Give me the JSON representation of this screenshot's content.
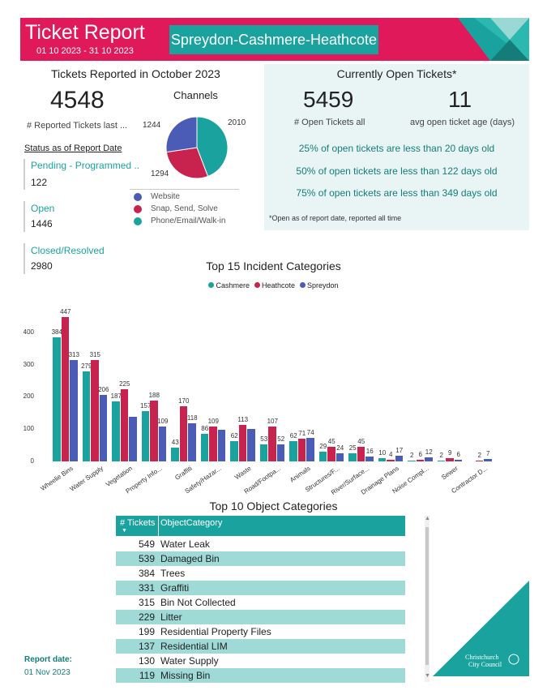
{
  "header": {
    "title": "Ticket Report",
    "date_range": "01 10 2023 - 31 10 2023",
    "region": "Spreydon-Cashmere-Heathcote"
  },
  "reported": {
    "heading": "Tickets Reported in October 2023",
    "count": "4548",
    "count_label": "# Reported Tickets last ...",
    "status_heading": "Status as of Report Date",
    "statuses": [
      {
        "label": "Pending - Programmed ..",
        "value": "122"
      },
      {
        "label": "Open",
        "value": "1446"
      },
      {
        "label": "Closed/Resolved",
        "value": "2980"
      }
    ]
  },
  "channels": {
    "title": "Channels",
    "slices": [
      {
        "name": "Website",
        "value": 1244,
        "label": "1244",
        "color": "#4a5cb5"
      },
      {
        "name": "Snap, Send, Solve",
        "value": 1294,
        "label": "1294",
        "color": "#c8224e"
      },
      {
        "name": "Phone/Email/Walk-in",
        "value": 2010,
        "label": "2010",
        "color": "#1aa39e"
      }
    ]
  },
  "open_tickets": {
    "heading": "Currently Open Tickets*",
    "open_count": "5459",
    "open_count_label": "# Open Tickets all",
    "avg_age": "11",
    "avg_age_label": "avg open ticket age (days)",
    "percentiles": [
      "25% of open tickets are less than 20 days old",
      "50% of open tickets are less than 122 days old",
      "75% of open tickets are less than 349 days old"
    ],
    "footnote": "*Open as of report date, reported all time"
  },
  "chart_data": {
    "type": "bar",
    "title": "Top 15 Incident Categories",
    "categories": [
      "Wheelie Bins",
      "Water Supply",
      "Vegetation",
      "Property Info...",
      "Graffiti",
      "Safety/Hazar...",
      "Waste",
      "Road/Footpa...",
      "Animals",
      "Structures/F...",
      "River/Surface...",
      "Drainage Plans",
      "Noise Compl...",
      "Sewer",
      "Contractor D..."
    ],
    "series": [
      {
        "name": "Cashmere",
        "color": "#1aa39e",
        "values": [
          384,
          279,
          187,
          157,
          43,
          86,
          62,
          53,
          62,
          29,
          25,
          10,
          2,
          2,
          0
        ]
      },
      {
        "name": "Heathcote",
        "color": "#c8224e",
        "values": [
          447,
          315,
          225,
          188,
          170,
          109,
          113,
          107,
          71,
          45,
          45,
          4,
          6,
          9,
          2
        ]
      },
      {
        "name": "Spreydon",
        "color": "#4a5cb5",
        "values": [
          313,
          206,
          138,
          109,
          118,
          99,
          100,
          52,
          74,
          24,
          16,
          17,
          12,
          6,
          7
        ]
      }
    ],
    "value_labels": [
      [
        "384",
        "447",
        "313"
      ],
      [
        "279",
        "315",
        "206"
      ],
      [
        "187",
        "225",
        ""
      ],
      [
        "157",
        "188",
        "109"
      ],
      [
        "43",
        "170",
        "118"
      ],
      [
        "86",
        "109",
        ""
      ],
      [
        "62",
        "113",
        ""
      ],
      [
        "53",
        "107",
        "52"
      ],
      [
        "62",
        "71",
        "74"
      ],
      [
        "29",
        "45",
        "24"
      ],
      [
        "25",
        "45",
        "16"
      ],
      [
        "10",
        "4",
        "17"
      ],
      [
        "2",
        "6",
        "12"
      ],
      [
        "2",
        "9",
        "6"
      ],
      [
        "",
        "2",
        "7"
      ]
    ],
    "yticks": [
      "0",
      "100",
      "200",
      "300",
      "400"
    ],
    "ylim": [
      0,
      450
    ],
    "legend": "top-center"
  },
  "objects": {
    "title": "Top 10 Object Categories",
    "col_count": "# Tickets",
    "col_category": "ObjectCategory",
    "rows": [
      {
        "count": "549",
        "category": "Water Leak"
      },
      {
        "count": "539",
        "category": "Damaged Bin"
      },
      {
        "count": "384",
        "category": "Trees"
      },
      {
        "count": "331",
        "category": "Graffiti"
      },
      {
        "count": "315",
        "category": "Bin Not Collected"
      },
      {
        "count": "229",
        "category": "Litter"
      },
      {
        "count": "199",
        "category": "Residential Property Files"
      },
      {
        "count": "137",
        "category": "Residential LIM"
      },
      {
        "count": "130",
        "category": "Water Supply"
      },
      {
        "count": "119",
        "category": "Missing Bin"
      }
    ]
  },
  "footer": {
    "report_date_label": "Report date:",
    "report_date": "01 Nov 2023",
    "logo_line1": "Christchurch",
    "logo_line2": "City Council"
  }
}
